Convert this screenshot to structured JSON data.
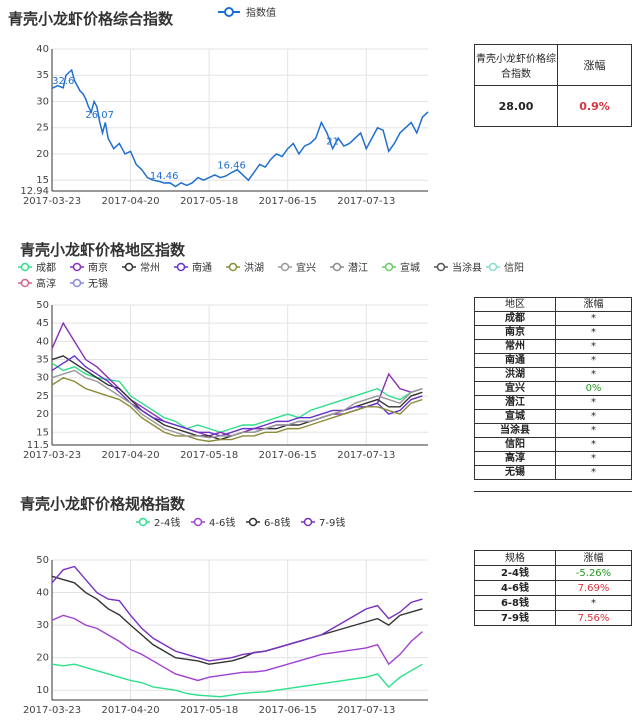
{
  "section1": {
    "title": "青壳小龙虾价格综合指数",
    "legend": "指数值",
    "table": {
      "col1": "青壳小龙虾价格综合指数",
      "col2": "涨幅",
      "value": "28.00",
      "change": "0.9%"
    }
  },
  "section2": {
    "title": "青壳小龙虾价格地区指数",
    "table_header": {
      "col1": "地区",
      "col2": "涨幅"
    },
    "rows": [
      {
        "name": "成都",
        "change": "*"
      },
      {
        "name": "南京",
        "change": "*"
      },
      {
        "name": "常州",
        "change": "*"
      },
      {
        "name": "南通",
        "change": "*"
      },
      {
        "name": "洪湖",
        "change": "*"
      },
      {
        "name": "宜兴",
        "change": "0%"
      },
      {
        "name": "潜江",
        "change": "*"
      },
      {
        "name": "宣城",
        "change": "*"
      },
      {
        "name": "当涂县",
        "change": "*"
      },
      {
        "name": "信阳",
        "change": "*"
      },
      {
        "name": "高淳",
        "change": "*"
      },
      {
        "name": "无锡",
        "change": "*"
      }
    ]
  },
  "section3": {
    "title": "青壳小龙虾价格规格指数",
    "table_header": {
      "col1": "规格",
      "col2": "涨幅"
    },
    "rows": [
      {
        "name": "2-4钱",
        "change": "-5.26%"
      },
      {
        "name": "4-6钱",
        "change": "7.69%"
      },
      {
        "name": "6-8钱",
        "change": "*"
      },
      {
        "name": "7-9钱",
        "change": "7.56%"
      }
    ]
  },
  "chart_data": [
    {
      "type": "line",
      "x_ticks": [
        "2017-03-23",
        "2017-04-20",
        "2017-05-18",
        "2017-06-15",
        "2017-07-13"
      ],
      "ylim": [
        12.94,
        40
      ],
      "y_ticks": [
        12.94,
        15,
        20,
        25,
        30,
        35,
        40
      ],
      "series": [
        {
          "name": "指数值",
          "color": "#1f6fd1",
          "x": [
            0,
            2,
            4,
            5,
            6,
            7,
            8,
            9,
            10,
            11,
            12,
            13,
            14,
            15,
            16,
            17,
            18,
            19,
            20,
            22,
            24,
            26,
            28,
            30,
            32,
            34,
            36,
            38,
            40,
            42,
            44,
            46,
            48,
            50,
            52,
            54,
            56,
            58,
            60,
            62,
            64,
            66,
            68,
            70,
            72,
            74,
            76,
            78,
            80,
            82,
            84,
            86,
            88,
            90,
            92,
            94,
            96,
            98,
            100,
            102,
            104,
            106,
            108,
            110,
            112,
            114,
            116,
            118,
            120,
            122,
            124,
            126,
            128,
            130,
            132,
            134
          ],
          "values": [
            32.5,
            33,
            32.6,
            35,
            35.5,
            36,
            34,
            33,
            32,
            31.5,
            30.5,
            29,
            28,
            30,
            29,
            26.07,
            24,
            26,
            23,
            21,
            22,
            20,
            20.5,
            18,
            17,
            15.5,
            15,
            14.8,
            14.46,
            14.5,
            13.8,
            14.5,
            14,
            14.5,
            15.5,
            15,
            15.5,
            16,
            15.5,
            15.8,
            16.46,
            17,
            16,
            15,
            16.5,
            18,
            17.5,
            19,
            20,
            19.5,
            21,
            22,
            20,
            21.5,
            22,
            23,
            26,
            24,
            21,
            23,
            21.5,
            22,
            23,
            24,
            21,
            23,
            25,
            24.5,
            20.5,
            22,
            24,
            25,
            26,
            24,
            27,
            28
          ]
        }
      ],
      "labels": [
        {
          "i": 2,
          "text": "32.6"
        },
        {
          "i": 15,
          "text": "26.07"
        },
        {
          "i": 28,
          "text": "14.46"
        },
        {
          "i": 40,
          "text": "16.46"
        },
        {
          "i": 58,
          "text": "21"
        }
      ]
    },
    {
      "type": "line",
      "x_ticks": [
        "2017-03-23",
        "2017-04-20",
        "2017-05-18",
        "2017-06-15",
        "2017-07-13"
      ],
      "ylim": [
        11.5,
        50
      ],
      "y_ticks": [
        11.5,
        15,
        20,
        25,
        30,
        35,
        40,
        45,
        50
      ],
      "series": [
        {
          "name": "成都",
          "color": "#2ee08a",
          "x": [
            0,
            4,
            8,
            12,
            16,
            20,
            24,
            28,
            32,
            36,
            40,
            44,
            48,
            52,
            56,
            60,
            64,
            68,
            72,
            76,
            80,
            84,
            88,
            92,
            96,
            100,
            104,
            108,
            112,
            116,
            120,
            124,
            128,
            132
          ],
          "values": [
            34,
            32,
            33,
            31,
            30,
            29.5,
            29,
            25,
            23,
            21,
            19,
            18,
            16,
            17,
            16,
            15,
            16,
            17,
            17,
            18,
            19,
            20,
            19,
            21,
            22,
            23,
            24,
            25,
            26,
            27,
            25,
            24,
            26,
            27
          ]
        },
        {
          "name": "南京",
          "color": "#8a2fb8",
          "x": [
            0,
            4,
            8,
            12,
            16,
            20,
            24,
            28,
            32,
            36,
            40,
            44,
            48,
            52,
            56,
            60,
            64,
            68,
            72,
            76,
            80,
            84,
            88,
            92,
            96,
            100,
            104,
            108,
            112,
            116,
            120,
            124,
            128,
            132
          ],
          "values": [
            38,
            45,
            40,
            35,
            33,
            30,
            27,
            24,
            22,
            20,
            18,
            17,
            16,
            15,
            14,
            15,
            14,
            15,
            16,
            16,
            17,
            17,
            18,
            18,
            19,
            20,
            20,
            21,
            22,
            23,
            31,
            27,
            26,
            27
          ]
        },
        {
          "name": "常州",
          "color": "#333333",
          "x": [
            0,
            4,
            8,
            12,
            16,
            20,
            24,
            28,
            32,
            36,
            40,
            44,
            48,
            52,
            56,
            60,
            64,
            68,
            72,
            76,
            80,
            84,
            88,
            92,
            96,
            100,
            104,
            108,
            112,
            116,
            120,
            124,
            128,
            132
          ],
          "values": [
            35,
            36,
            34,
            32,
            30,
            28,
            27,
            24,
            21,
            19,
            17,
            16,
            15,
            14,
            14,
            13,
            14,
            15,
            15,
            16,
            16,
            17,
            17,
            18,
            19,
            20,
            21,
            22,
            23,
            24,
            22,
            22,
            25,
            26
          ]
        },
        {
          "name": "南通",
          "color": "#6633cc",
          "x": [
            0,
            4,
            8,
            12,
            16,
            20,
            24,
            28,
            32,
            36,
            40,
            44,
            48,
            52,
            56,
            60,
            64,
            68,
            72,
            76,
            80,
            84,
            88,
            92,
            96,
            100,
            104,
            108,
            112,
            116,
            120,
            124,
            128,
            132
          ],
          "values": [
            32,
            34,
            36,
            33,
            31,
            29,
            26,
            23,
            21,
            19,
            18,
            17,
            16,
            15,
            15,
            14,
            15,
            16,
            16,
            17,
            18,
            18,
            19,
            19,
            20,
            21,
            21,
            22,
            22,
            23,
            20,
            21,
            24,
            25
          ]
        },
        {
          "name": "洪湖",
          "color": "#8b8b3a",
          "x": [
            0,
            4,
            8,
            12,
            16,
            20,
            24,
            28,
            32,
            36,
            40,
            44,
            48,
            52,
            56,
            60,
            64,
            68,
            72,
            76,
            80,
            84,
            88,
            92,
            96,
            100,
            104,
            108,
            112,
            116,
            120,
            124,
            128,
            132
          ],
          "values": [
            28,
            30,
            29,
            27,
            26,
            25,
            24,
            22,
            19,
            17,
            15,
            14,
            14,
            13,
            12.5,
            13,
            13,
            14,
            14,
            15,
            15,
            16,
            16,
            17,
            18,
            19,
            20,
            21,
            22,
            22,
            21,
            20,
            23,
            24
          ]
        },
        {
          "name": "宜兴",
          "color": "#999999",
          "x": [
            0,
            4,
            8,
            12,
            16,
            20,
            24,
            28,
            32,
            36,
            40,
            44,
            48,
            52,
            56,
            60,
            64,
            68,
            72,
            76,
            80,
            84,
            88,
            92,
            96,
            100,
            104,
            108,
            112,
            116,
            120,
            124,
            128,
            132
          ],
          "values": [
            30,
            31,
            32,
            30,
            29,
            27,
            25,
            23,
            20,
            18,
            16,
            15,
            14,
            14,
            13.5,
            14,
            14,
            15,
            15,
            16,
            17,
            17,
            18,
            18,
            19,
            20,
            21,
            23,
            24,
            25,
            24,
            23,
            26,
            27
          ]
        }
      ],
      "legend": [
        "成都",
        "南京",
        "常州",
        "南通",
        "洪湖",
        "宜兴",
        "潜江",
        "宣城",
        "当涂县",
        "信阳",
        "高淳",
        "无锡"
      ],
      "legend_colors": [
        "#2ee08a",
        "#8a2fb8",
        "#333333",
        "#6633cc",
        "#8b8b3a",
        "#999999",
        "#8a8a8a",
        "#66cc66",
        "#555555",
        "#88ddcc",
        "#cc6688",
        "#8888dd"
      ]
    },
    {
      "type": "line",
      "x_ticks": [
        "2017-03-23",
        "2017-04-20",
        "2017-05-18",
        "2017-06-15",
        "2017-07-13"
      ],
      "ylim": [
        7,
        50
      ],
      "y_ticks": [
        10,
        20,
        30,
        40,
        50
      ],
      "series": [
        {
          "name": "2-4钱",
          "color": "#2ee08a",
          "x": [
            0,
            4,
            8,
            12,
            16,
            20,
            24,
            28,
            32,
            36,
            40,
            44,
            48,
            52,
            56,
            60,
            64,
            68,
            72,
            76,
            80,
            84,
            88,
            92,
            96,
            100,
            104,
            108,
            112,
            116,
            120,
            124,
            128,
            132
          ],
          "values": [
            18,
            17.5,
            18,
            17,
            16,
            15,
            14,
            13,
            12.33,
            11,
            10.5,
            10,
            9,
            8.5,
            8.25,
            8,
            8.5,
            9,
            9.33,
            9.5,
            10,
            10.5,
            11,
            11.5,
            12,
            12.5,
            13,
            13.5,
            14,
            15,
            11,
            14,
            16,
            18
          ]
        },
        {
          "name": "4-6钱",
          "color": "#a040d0",
          "x": [
            0,
            4,
            8,
            12,
            16,
            20,
            24,
            28,
            32,
            36,
            40,
            44,
            48,
            52,
            56,
            60,
            64,
            68,
            72,
            76,
            80,
            84,
            88,
            92,
            96,
            100,
            104,
            108,
            112,
            116,
            120,
            124,
            128,
            132
          ],
          "values": [
            31.5,
            33,
            32,
            30,
            29,
            27,
            25,
            22.5,
            21,
            19,
            17,
            15,
            14,
            13,
            14,
            14.5,
            15,
            15.5,
            15.6,
            16,
            17,
            18,
            19,
            20,
            21,
            21.5,
            22,
            22.5,
            23,
            24,
            18,
            21,
            25,
            28
          ]
        },
        {
          "name": "6-8钱",
          "color": "#333333",
          "x": [
            0,
            4,
            8,
            12,
            16,
            20,
            24,
            28,
            32,
            36,
            40,
            44,
            48,
            52,
            56,
            60,
            64,
            68,
            72,
            76,
            80,
            84,
            88,
            92,
            96,
            100,
            104,
            108,
            112,
            116,
            120,
            124,
            128,
            132
          ],
          "values": [
            45,
            44,
            43,
            40,
            38,
            35,
            33.15,
            30,
            27,
            24,
            22,
            20,
            19.5,
            19,
            18,
            18.5,
            19,
            20,
            21.6,
            22,
            23,
            24,
            25,
            26,
            27,
            28,
            29,
            30,
            31,
            32,
            30,
            33,
            34,
            35
          ]
        },
        {
          "name": "7-9钱",
          "color": "#7a2fc0",
          "x": [
            0,
            4,
            8,
            12,
            16,
            20,
            24,
            28,
            32,
            36,
            40,
            44,
            48,
            52,
            56,
            60,
            64,
            68,
            72,
            76,
            80,
            84,
            88,
            92,
            96,
            100,
            104,
            108,
            112,
            116,
            120,
            124,
            128,
            132
          ],
          "values": [
            43,
            47,
            48,
            44,
            40,
            38,
            37.5,
            33,
            29,
            26,
            24,
            22,
            21,
            20,
            19,
            19.5,
            20,
            21,
            21.5,
            22,
            23,
            24,
            25,
            26,
            27,
            29,
            31,
            33,
            35,
            36,
            32,
            34,
            37,
            38
          ]
        }
      ]
    }
  ]
}
